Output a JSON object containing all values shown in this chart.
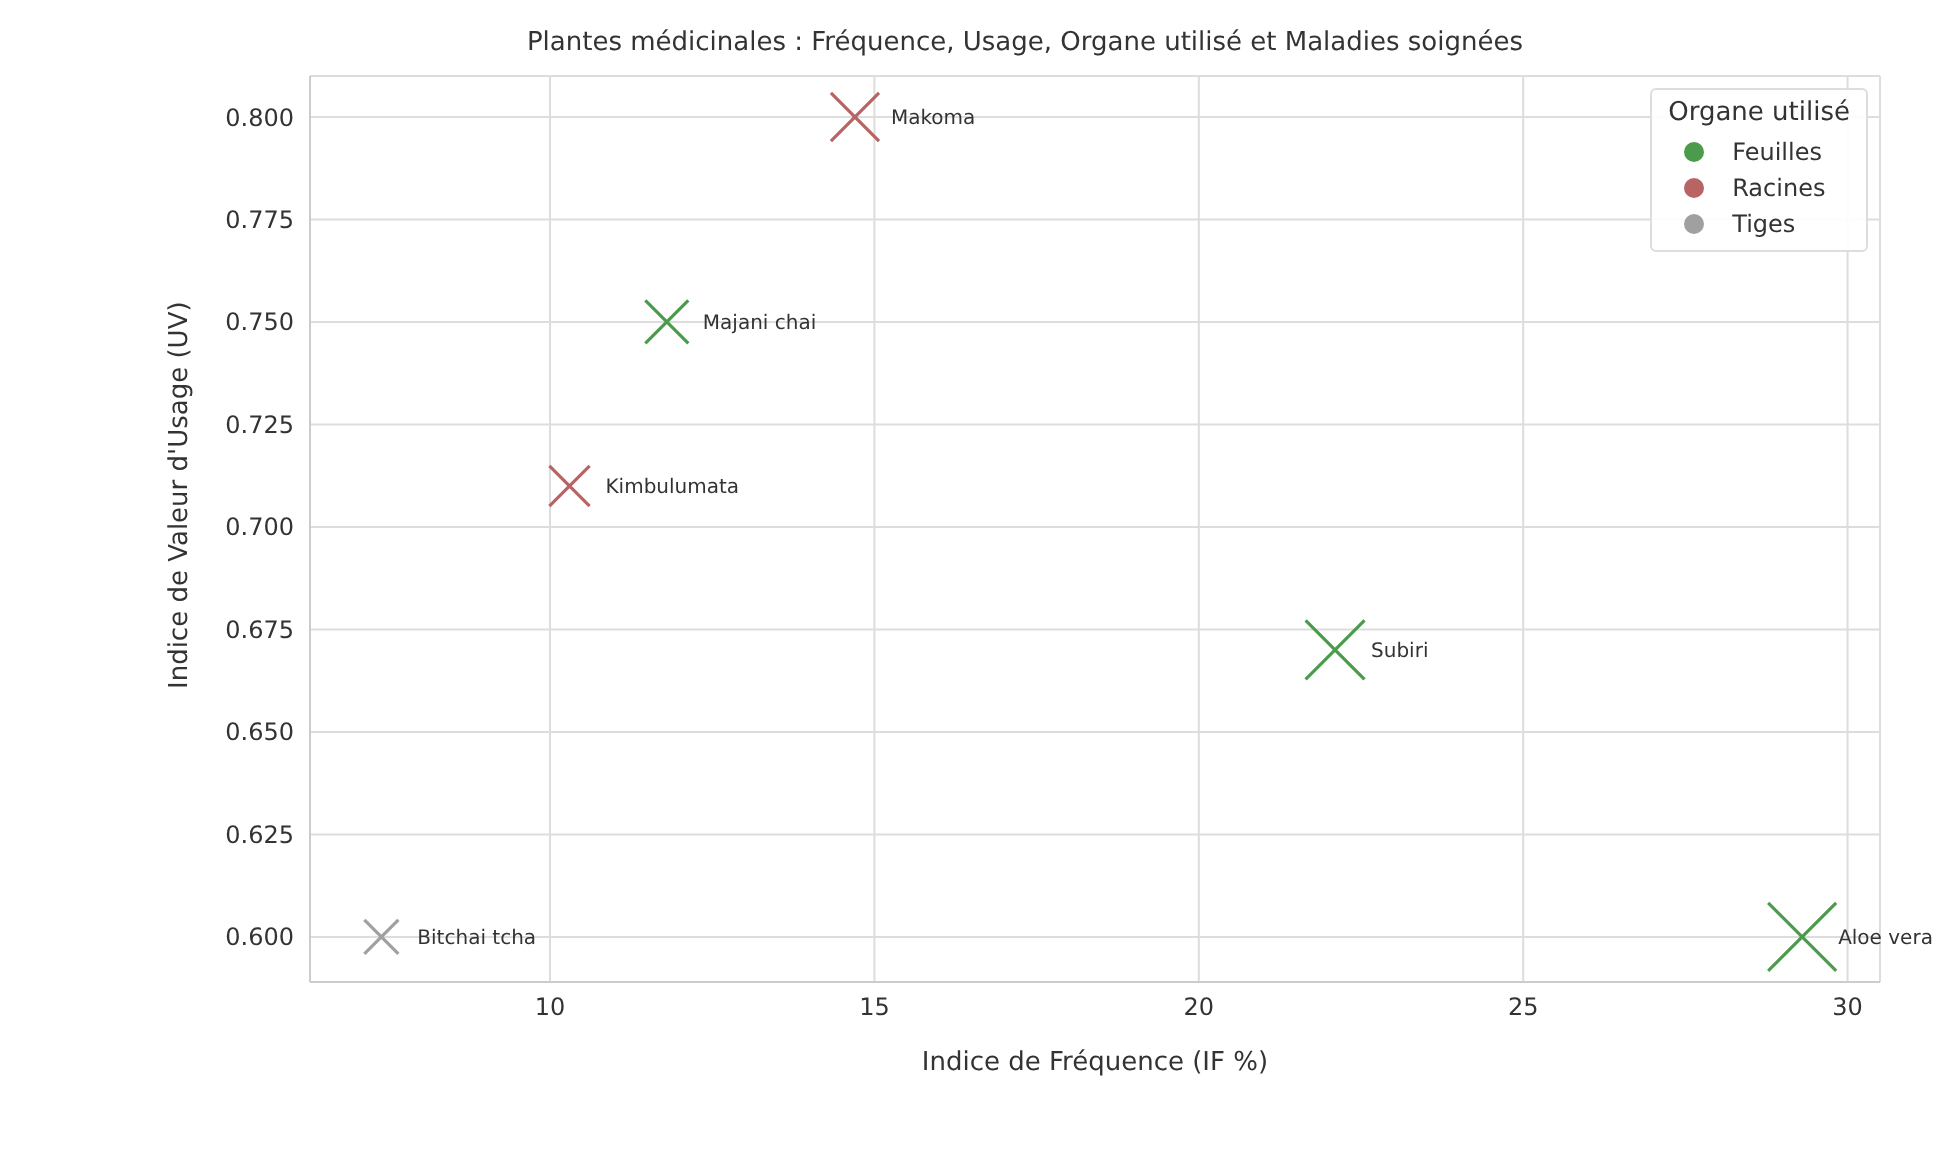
{
  "chart_data": {
    "type": "bubble",
    "title": "Plantes médicinales : Fréquence, Usage, Organe utilisé et Maladies soignées",
    "xlabel": "Indice de Fréquence (IF %)",
    "ylabel": "Indice de Valeur d'Usage (UV)",
    "legend_title": "Organe utilisé",
    "legend": "top right",
    "grid": true,
    "marker": "cross",
    "xlim": [
      6.3,
      30.5
    ],
    "xticks": [
      10,
      15,
      20,
      25,
      30
    ],
    "ylim": [
      0.589,
      0.81
    ],
    "yticks": [
      {
        "value": 0.6,
        "label": "0.600"
      },
      {
        "value": 0.625,
        "label": "0.625"
      },
      {
        "value": 0.65,
        "label": "0.650"
      },
      {
        "value": 0.675,
        "label": "0.675"
      },
      {
        "value": 0.7,
        "label": "0.700"
      },
      {
        "value": 0.725,
        "label": "0.725"
      },
      {
        "value": 0.75,
        "label": "0.750"
      },
      {
        "value": 0.775,
        "label": "0.775"
      },
      {
        "value": 0.8,
        "label": "0.800"
      }
    ],
    "series": [
      {
        "name": "Feuilles",
        "color": "#4c9a4c",
        "x": [
          11.8,
          22.1,
          29.3
        ],
        "values": [
          0.75,
          0.67,
          0.6
        ],
        "sizes": [
          0.4,
          0.75,
          1
        ]
      },
      {
        "name": "Racines",
        "color": "#b86464",
        "x": [
          10.3,
          14.7
        ],
        "values": [
          0.71,
          0.8
        ],
        "sizes": [
          0.35,
          0.5
        ]
      },
      {
        "name": "Tiges",
        "color": "#a0a0a0",
        "x": [
          7.4
        ],
        "values": [
          0.6
        ],
        "sizes": [
          0.25
        ]
      }
    ],
    "annotations": [
      {
        "text": "Makoma",
        "x": 14.7,
        "y": 0.8
      },
      {
        "text": "Majani chai",
        "x": 11.8,
        "y": 0.75
      },
      {
        "text": "Kimbulumata",
        "x": 10.3,
        "y": 0.71
      },
      {
        "text": "Subiri",
        "x": 22.1,
        "y": 0.67
      },
      {
        "text": "Bitchai tcha",
        "x": 7.4,
        "y": 0.6
      },
      {
        "text": "Aloe vera",
        "x": 29.3,
        "y": 0.6
      }
    ]
  }
}
